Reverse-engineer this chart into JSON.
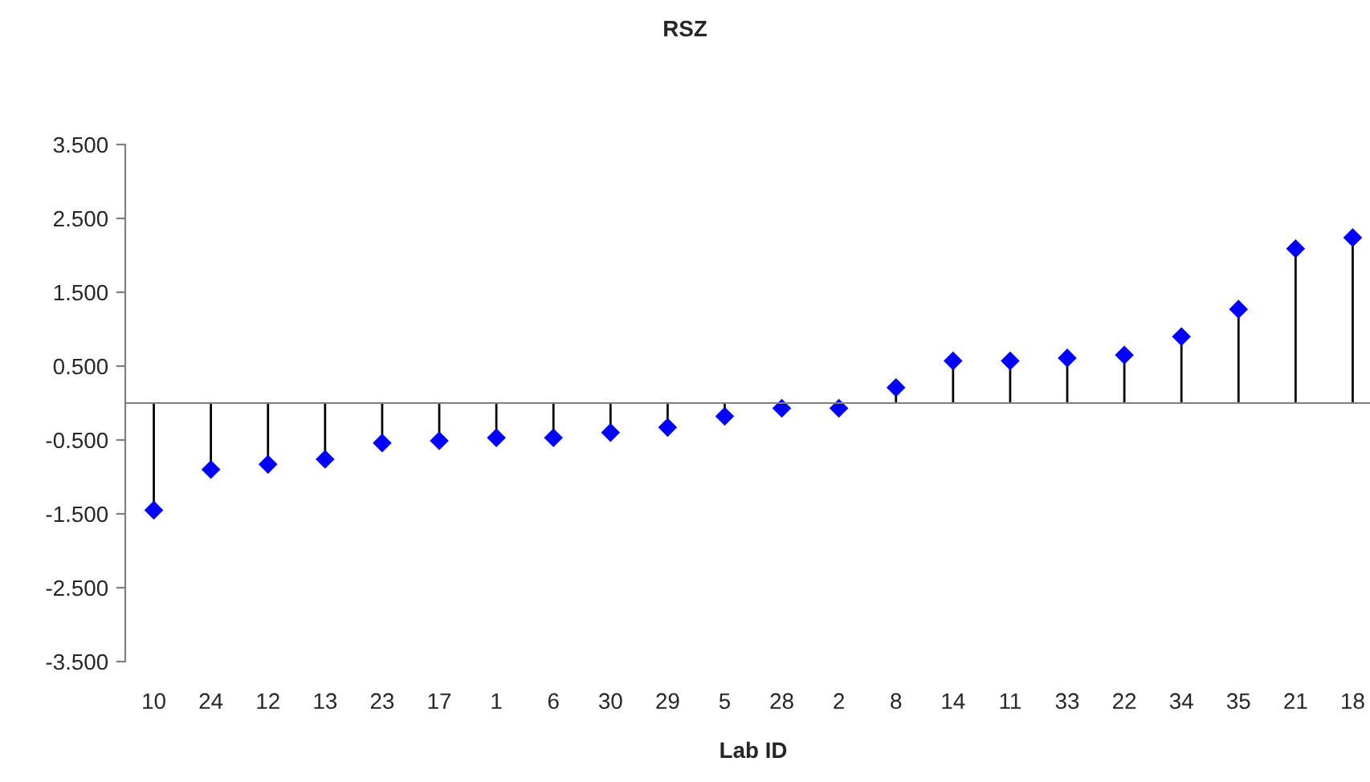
{
  "chart_data": {
    "type": "lollipop",
    "title": "RSZ",
    "xlabel": "Lab ID",
    "categories": [
      "10",
      "24",
      "12",
      "13",
      "23",
      "17",
      "1",
      "6",
      "30",
      "29",
      "5",
      "28",
      "2",
      "8",
      "14",
      "11",
      "33",
      "22",
      "34",
      "35",
      "21",
      "18"
    ],
    "values": [
      -1.45,
      -0.9,
      -0.83,
      -0.76,
      -0.54,
      -0.51,
      -0.47,
      -0.47,
      -0.4,
      -0.33,
      -0.18,
      -0.07,
      -0.07,
      0.21,
      0.57,
      0.57,
      0.61,
      0.65,
      0.9,
      1.27,
      2.09,
      2.24
    ],
    "color": "#0000ff",
    "marker": "diamond",
    "ylim": [
      -3.5,
      3.5
    ],
    "yticks": [
      {
        "value": -3.5,
        "label": "-3.500"
      },
      {
        "value": -2.5,
        "label": "-2.500"
      },
      {
        "value": -1.5,
        "label": "-1.500"
      },
      {
        "value": -0.5,
        "label": "-0.500"
      },
      {
        "value": 0.5,
        "label": "0.500"
      },
      {
        "value": 1.5,
        "label": "1.500"
      },
      {
        "value": 2.5,
        "label": "2.500"
      },
      {
        "value": 3.5,
        "label": "3.500"
      }
    ],
    "grid": false,
    "legend": false
  }
}
